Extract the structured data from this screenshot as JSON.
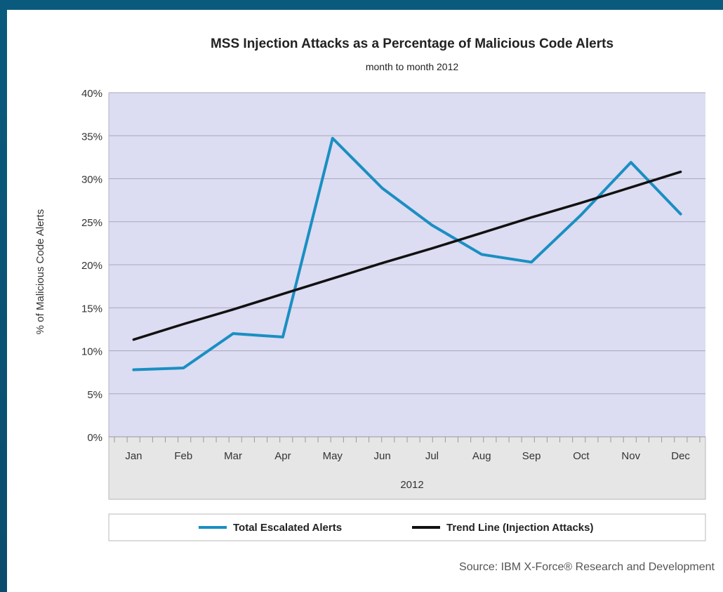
{
  "chart_data": {
    "type": "line",
    "title": "MSS Injection Attacks as a Percentage of Malicious Code Alerts",
    "subtitle": "month to month 2012",
    "xlabel": "2012",
    "ylabel": "% of Malicious Code Alerts",
    "categories": [
      "Jan",
      "Feb",
      "Mar",
      "Apr",
      "May",
      "Jun",
      "Jul",
      "Aug",
      "Sep",
      "Oct",
      "Nov",
      "Dec"
    ],
    "yticks": [
      "0%",
      "5%",
      "10%",
      "15%",
      "20%",
      "25%",
      "30%",
      "35%",
      "40%"
    ],
    "ylim": [
      0,
      40
    ],
    "grid": true,
    "legend_position": "bottom",
    "series": [
      {
        "name": "Total Escalated Alerts",
        "color": "#1a8fc2",
        "values": [
          7.8,
          8.0,
          12.0,
          11.6,
          34.7,
          28.9,
          24.6,
          21.2,
          20.3,
          25.8,
          31.9,
          25.9
        ]
      },
      {
        "name": "Trend Line (Injection Attacks)",
        "color": "#111111",
        "values": [
          11.3,
          13.1,
          14.8,
          16.6,
          18.4,
          20.2,
          21.9,
          23.7,
          25.5,
          27.2,
          29.0,
          30.8
        ]
      }
    ],
    "source": "Source: IBM X-Force® Research and Development"
  }
}
